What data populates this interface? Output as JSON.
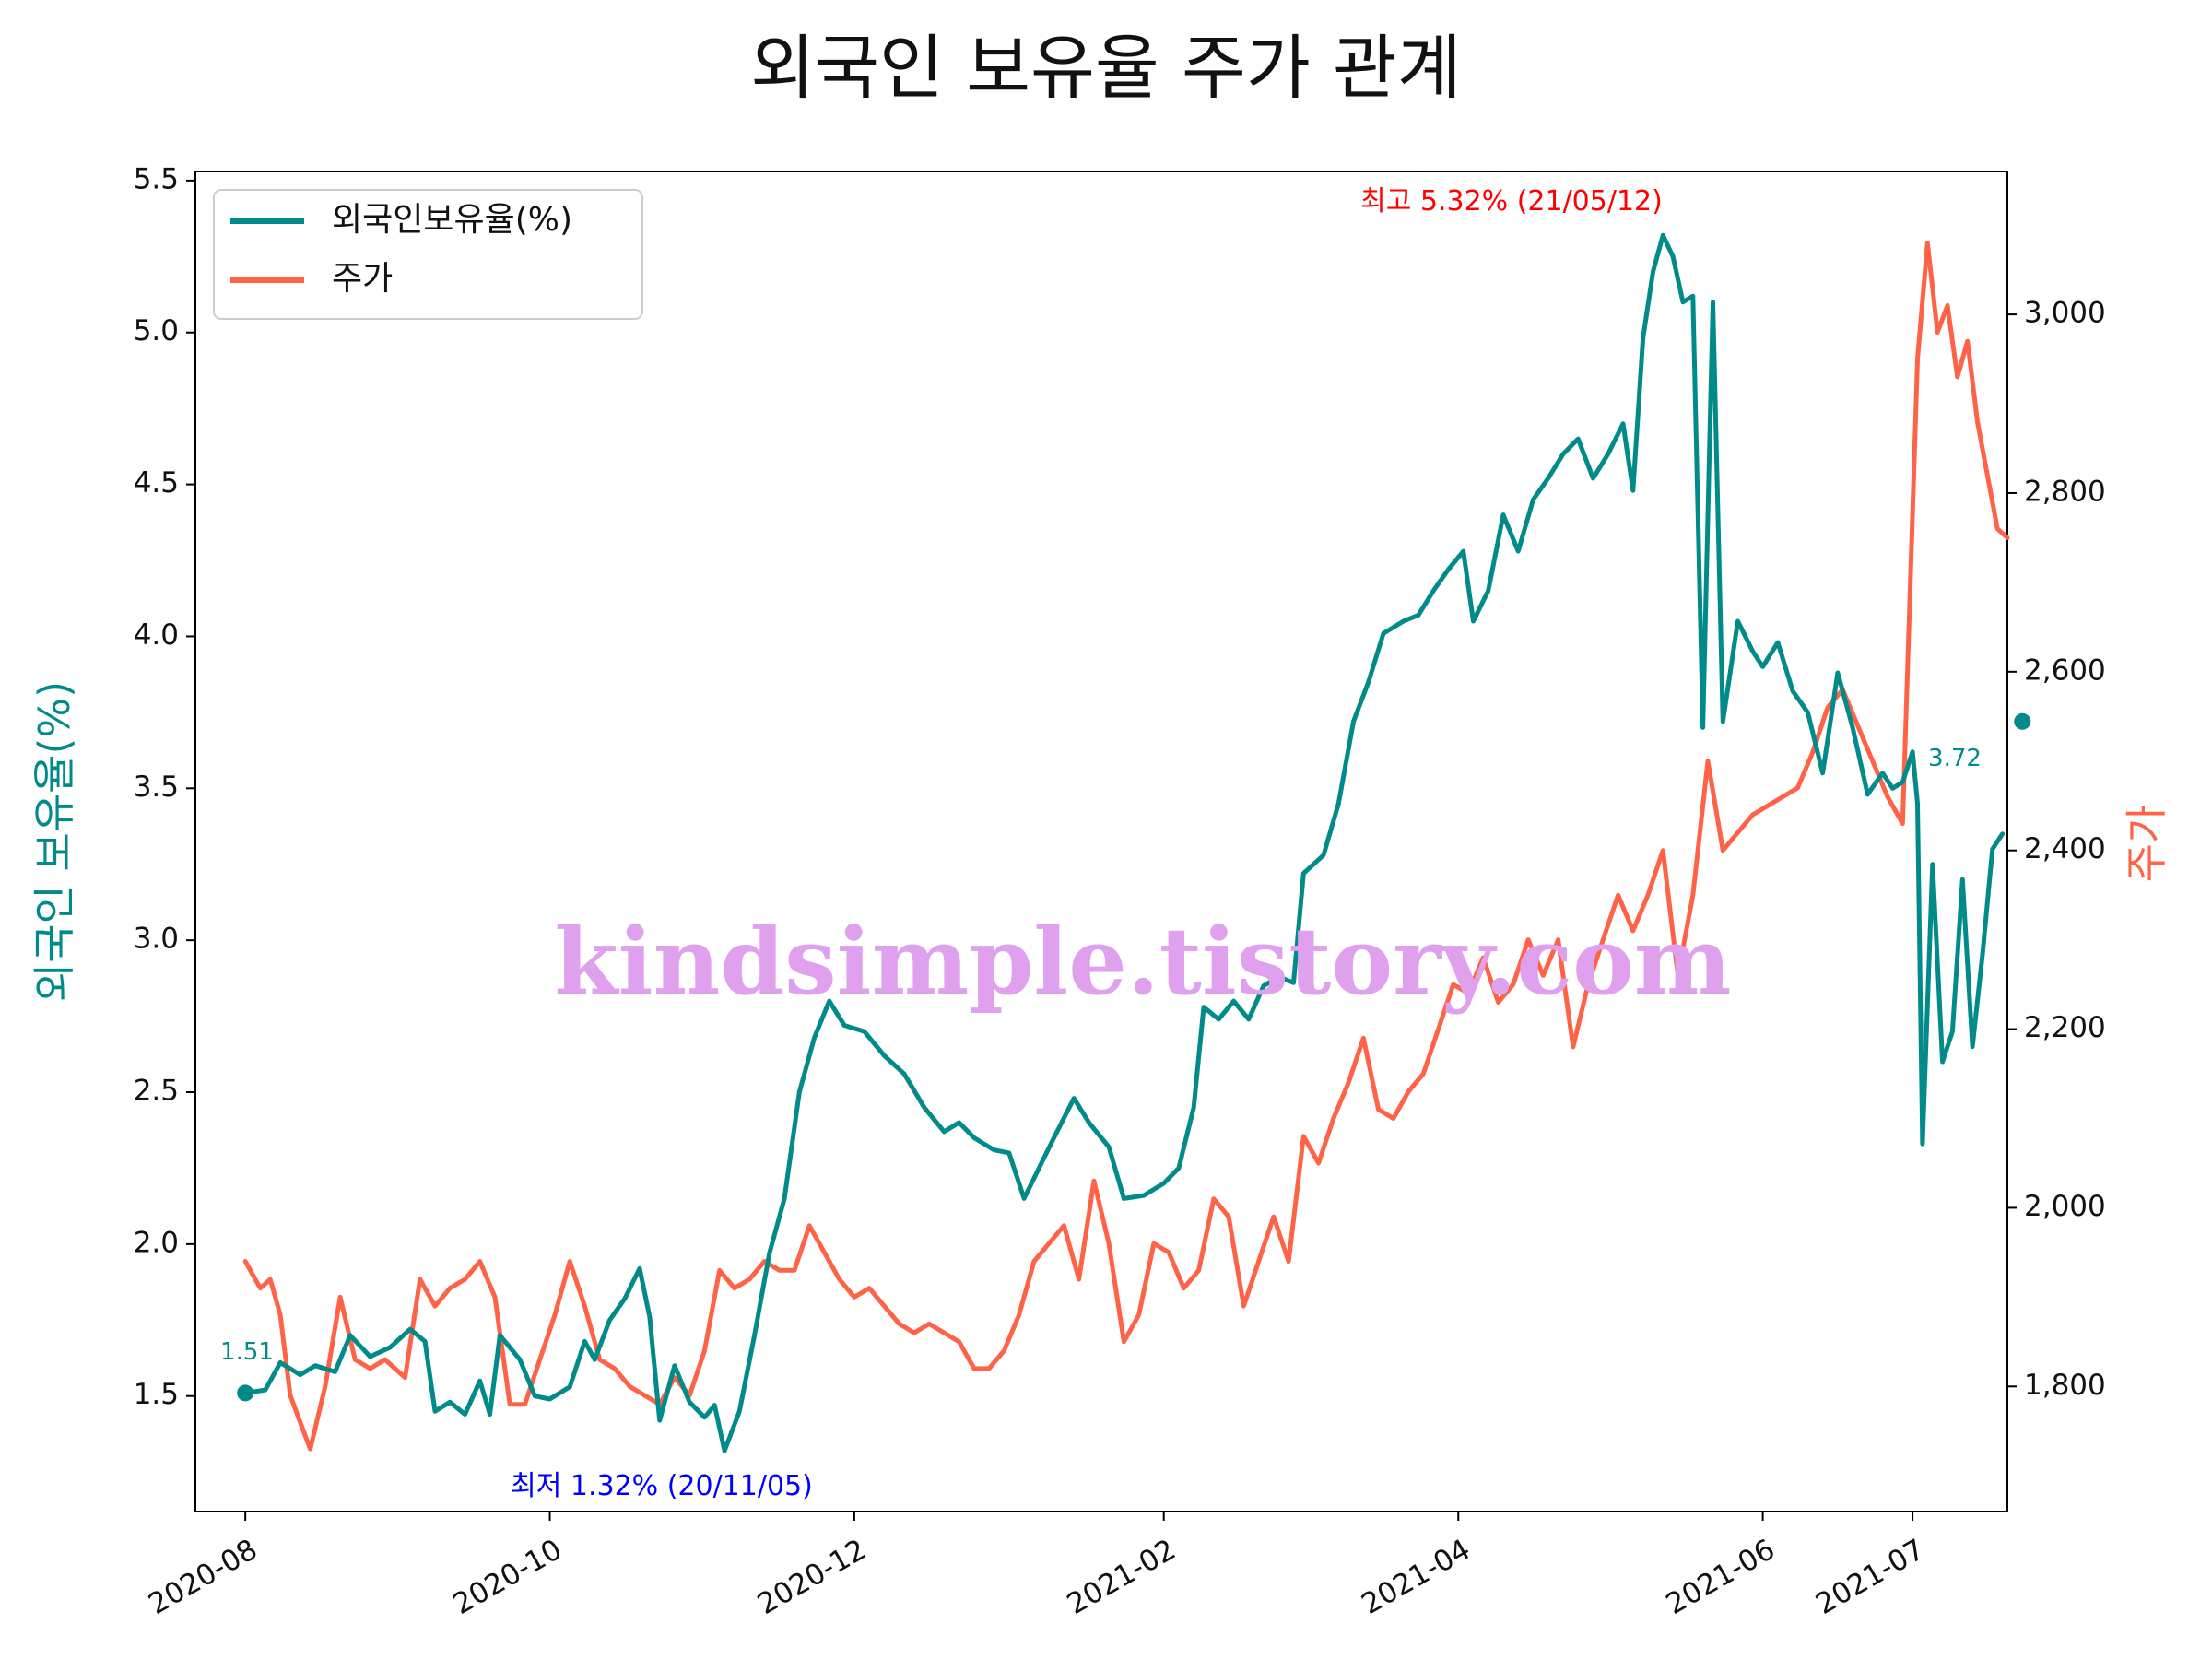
{
  "chart_data": {
    "type": "line",
    "title": "외국인 보유율 주가 관계",
    "ylabel_left": "외국인 보유율(%)",
    "ylabel_right": "주가",
    "xlim": [
      "2020-07-22",
      "2021-07-20"
    ],
    "ylim_left": [
      1.12,
      5.53
    ],
    "ylim_right": [
      1660,
      3160
    ],
    "x_ticks": [
      {
        "date": "2020-08-01",
        "label": "2020-08"
      },
      {
        "date": "2020-10-01",
        "label": "2020-10"
      },
      {
        "date": "2020-12-01",
        "label": "2020-12"
      },
      {
        "date": "2021-02-01",
        "label": "2021-02"
      },
      {
        "date": "2021-04-01",
        "label": "2021-04"
      },
      {
        "date": "2021-06-01",
        "label": "2021-06"
      },
      {
        "date": "2021-07-01",
        "label": "2021-07"
      }
    ],
    "y_ticks_left": [
      {
        "value": 1.5,
        "label": "1.5"
      },
      {
        "value": 2.0,
        "label": "2.0"
      },
      {
        "value": 2.5,
        "label": "2.5"
      },
      {
        "value": 3.0,
        "label": "3.0"
      },
      {
        "value": 3.5,
        "label": "3.5"
      },
      {
        "value": 4.0,
        "label": "4.0"
      },
      {
        "value": 4.5,
        "label": "4.5"
      },
      {
        "value": 5.0,
        "label": "5.0"
      },
      {
        "value": 5.5,
        "label": "5.5"
      }
    ],
    "y_ticks_right": [
      {
        "value": 1800,
        "label": "1,800"
      },
      {
        "value": 2000,
        "label": "2,000"
      },
      {
        "value": 2200,
        "label": "2,200"
      },
      {
        "value": 2400,
        "label": "2,400"
      },
      {
        "value": 2600,
        "label": "2,600"
      },
      {
        "value": 2800,
        "label": "2,800"
      },
      {
        "value": 3000,
        "label": "3,000"
      }
    ],
    "legend": {
      "position": "upper-left"
    },
    "grid": false,
    "series": [
      {
        "name": "외국인보유율(%)",
        "axis": "left",
        "color": "#008b8a",
        "points": [
          [
            "2020-08-01",
            1.51
          ],
          [
            "2020-08-05",
            1.52
          ],
          [
            "2020-08-08",
            1.61
          ],
          [
            "2020-08-12",
            1.57
          ],
          [
            "2020-08-15",
            1.6
          ],
          [
            "2020-08-19",
            1.58
          ],
          [
            "2020-08-22",
            1.7
          ],
          [
            "2020-08-26",
            1.63
          ],
          [
            "2020-08-30",
            1.66
          ],
          [
            "2020-09-03",
            1.72
          ],
          [
            "2020-09-06",
            1.68
          ],
          [
            "2020-09-08",
            1.45
          ],
          [
            "2020-09-11",
            1.48
          ],
          [
            "2020-09-14",
            1.44
          ],
          [
            "2020-09-17",
            1.55
          ],
          [
            "2020-09-19",
            1.44
          ],
          [
            "2020-09-21",
            1.7
          ],
          [
            "2020-09-25",
            1.62
          ],
          [
            "2020-09-28",
            1.5
          ],
          [
            "2020-10-01",
            1.49
          ],
          [
            "2020-10-05",
            1.53
          ],
          [
            "2020-10-08",
            1.68
          ],
          [
            "2020-10-10",
            1.62
          ],
          [
            "2020-10-13",
            1.75
          ],
          [
            "2020-10-16",
            1.82
          ],
          [
            "2020-10-19",
            1.92
          ],
          [
            "2020-10-21",
            1.76
          ],
          [
            "2020-10-23",
            1.42
          ],
          [
            "2020-10-26",
            1.6
          ],
          [
            "2020-10-29",
            1.48
          ],
          [
            "2020-11-01",
            1.43
          ],
          [
            "2020-11-03",
            1.47
          ],
          [
            "2020-11-05",
            1.32
          ],
          [
            "2020-11-08",
            1.45
          ],
          [
            "2020-11-11",
            1.7
          ],
          [
            "2020-11-14",
            1.97
          ],
          [
            "2020-11-17",
            2.15
          ],
          [
            "2020-11-20",
            2.5
          ],
          [
            "2020-11-23",
            2.68
          ],
          [
            "2020-11-26",
            2.8
          ],
          [
            "2020-11-29",
            2.72
          ],
          [
            "2020-12-03",
            2.7
          ],
          [
            "2020-12-07",
            2.62
          ],
          [
            "2020-12-11",
            2.56
          ],
          [
            "2020-12-15",
            2.45
          ],
          [
            "2020-12-19",
            2.37
          ],
          [
            "2020-12-22",
            2.4
          ],
          [
            "2020-12-25",
            2.35
          ],
          [
            "2020-12-29",
            2.31
          ],
          [
            "2021-01-01",
            2.3
          ],
          [
            "2021-01-04",
            2.15
          ],
          [
            "2021-01-07",
            2.25
          ],
          [
            "2021-01-10",
            2.35
          ],
          [
            "2021-01-14",
            2.48
          ],
          [
            "2021-01-17",
            2.4
          ],
          [
            "2021-01-21",
            2.32
          ],
          [
            "2021-01-24",
            2.15
          ],
          [
            "2021-01-28",
            2.16
          ],
          [
            "2021-02-01",
            2.2
          ],
          [
            "2021-02-04",
            2.25
          ],
          [
            "2021-02-07",
            2.45
          ],
          [
            "2021-02-09",
            2.78
          ],
          [
            "2021-02-12",
            2.74
          ],
          [
            "2021-02-15",
            2.8
          ],
          [
            "2021-02-18",
            2.74
          ],
          [
            "2021-02-21",
            2.85
          ],
          [
            "2021-02-24",
            2.88
          ],
          [
            "2021-02-27",
            2.86
          ],
          [
            "2021-03-01",
            3.22
          ],
          [
            "2021-03-05",
            3.28
          ],
          [
            "2021-03-08",
            3.45
          ],
          [
            "2021-03-11",
            3.72
          ],
          [
            "2021-03-14",
            3.85
          ],
          [
            "2021-03-17",
            4.01
          ],
          [
            "2021-03-21",
            4.05
          ],
          [
            "2021-03-24",
            4.07
          ],
          [
            "2021-03-27",
            4.15
          ],
          [
            "2021-03-30",
            4.22
          ],
          [
            "2021-04-02",
            4.28
          ],
          [
            "2021-04-04",
            4.05
          ],
          [
            "2021-04-07",
            4.15
          ],
          [
            "2021-04-10",
            4.4
          ],
          [
            "2021-04-13",
            4.28
          ],
          [
            "2021-04-16",
            4.45
          ],
          [
            "2021-04-19",
            4.52
          ],
          [
            "2021-04-22",
            4.6
          ],
          [
            "2021-04-25",
            4.65
          ],
          [
            "2021-04-28",
            4.52
          ],
          [
            "2021-05-01",
            4.6
          ],
          [
            "2021-05-04",
            4.7
          ],
          [
            "2021-05-06",
            4.48
          ],
          [
            "2021-05-08",
            4.98
          ],
          [
            "2021-05-10",
            5.2
          ],
          [
            "2021-05-12",
            5.32
          ],
          [
            "2021-05-14",
            5.25
          ],
          [
            "2021-05-16",
            5.1
          ],
          [
            "2021-05-18",
            5.12
          ],
          [
            "2021-05-20",
            3.7
          ],
          [
            "2021-05-22",
            5.1
          ],
          [
            "2021-05-24",
            3.72
          ],
          [
            "2021-05-27",
            4.05
          ],
          [
            "2021-05-30",
            3.95
          ],
          [
            "2021-06-01",
            3.9
          ],
          [
            "2021-06-04",
            3.98
          ],
          [
            "2021-06-07",
            3.82
          ],
          [
            "2021-06-10",
            3.75
          ],
          [
            "2021-06-13",
            3.55
          ],
          [
            "2021-06-16",
            3.88
          ],
          [
            "2021-06-19",
            3.7
          ],
          [
            "2021-06-22",
            3.48
          ],
          [
            "2021-06-25",
            3.55
          ],
          [
            "2021-06-27",
            3.5
          ],
          [
            "2021-06-29",
            3.52
          ],
          [
            "2021-07-01",
            3.62
          ],
          [
            "2021-07-02",
            3.45
          ],
          [
            "2021-07-03",
            2.33
          ],
          [
            "2021-07-05",
            3.25
          ],
          [
            "2021-07-07",
            2.6
          ],
          [
            "2021-07-09",
            2.7
          ],
          [
            "2021-07-11",
            3.2
          ],
          [
            "2021-07-13",
            2.65
          ],
          [
            "2021-07-15",
            2.95
          ],
          [
            "2021-07-17",
            3.3
          ],
          [
            "2021-07-19",
            3.35
          ]
        ]
      },
      {
        "name": "주가",
        "axis": "right",
        "color": "#ff6347",
        "points": [
          [
            "2020-08-01",
            1940
          ],
          [
            "2020-08-04",
            1910
          ],
          [
            "2020-08-06",
            1920
          ],
          [
            "2020-08-08",
            1880
          ],
          [
            "2020-08-10",
            1790
          ],
          [
            "2020-08-12",
            1760
          ],
          [
            "2020-08-14",
            1730
          ],
          [
            "2020-08-17",
            1800
          ],
          [
            "2020-08-20",
            1900
          ],
          [
            "2020-08-23",
            1830
          ],
          [
            "2020-08-26",
            1820
          ],
          [
            "2020-08-29",
            1830
          ],
          [
            "2020-09-02",
            1810
          ],
          [
            "2020-09-05",
            1920
          ],
          [
            "2020-09-08",
            1890
          ],
          [
            "2020-09-11",
            1910
          ],
          [
            "2020-09-14",
            1920
          ],
          [
            "2020-09-17",
            1940
          ],
          [
            "2020-09-20",
            1900
          ],
          [
            "2020-09-23",
            1780
          ],
          [
            "2020-09-26",
            1780
          ],
          [
            "2020-09-29",
            1830
          ],
          [
            "2020-10-02",
            1880
          ],
          [
            "2020-10-05",
            1940
          ],
          [
            "2020-10-08",
            1890
          ],
          [
            "2020-10-11",
            1830
          ],
          [
            "2020-10-14",
            1820
          ],
          [
            "2020-10-17",
            1800
          ],
          [
            "2020-10-20",
            1790
          ],
          [
            "2020-10-23",
            1780
          ],
          [
            "2020-10-26",
            1810
          ],
          [
            "2020-10-29",
            1790
          ],
          [
            "2020-11-01",
            1840
          ],
          [
            "2020-11-04",
            1930
          ],
          [
            "2020-11-07",
            1910
          ],
          [
            "2020-11-10",
            1920
          ],
          [
            "2020-11-13",
            1940
          ],
          [
            "2020-11-16",
            1930
          ],
          [
            "2020-11-19",
            1930
          ],
          [
            "2020-11-22",
            1980
          ],
          [
            "2020-11-25",
            1950
          ],
          [
            "2020-11-28",
            1920
          ],
          [
            "2020-12-01",
            1900
          ],
          [
            "2020-12-04",
            1910
          ],
          [
            "2020-12-07",
            1890
          ],
          [
            "2020-12-10",
            1870
          ],
          [
            "2020-12-13",
            1860
          ],
          [
            "2020-12-16",
            1870
          ],
          [
            "2020-12-19",
            1860
          ],
          [
            "2020-12-22",
            1850
          ],
          [
            "2020-12-25",
            1820
          ],
          [
            "2020-12-28",
            1820
          ],
          [
            "2020-12-31",
            1840
          ],
          [
            "2021-01-03",
            1880
          ],
          [
            "2021-01-06",
            1940
          ],
          [
            "2021-01-09",
            1960
          ],
          [
            "2021-01-12",
            1980
          ],
          [
            "2021-01-15",
            1920
          ],
          [
            "2021-01-18",
            2030
          ],
          [
            "2021-01-21",
            1960
          ],
          [
            "2021-01-24",
            1850
          ],
          [
            "2021-01-27",
            1880
          ],
          [
            "2021-01-30",
            1960
          ],
          [
            "2021-02-02",
            1950
          ],
          [
            "2021-02-05",
            1910
          ],
          [
            "2021-02-08",
            1930
          ],
          [
            "2021-02-11",
            2010
          ],
          [
            "2021-02-14",
            1990
          ],
          [
            "2021-02-17",
            1890
          ],
          [
            "2021-02-20",
            1940
          ],
          [
            "2021-02-23",
            1990
          ],
          [
            "2021-02-26",
            1940
          ],
          [
            "2021-03-01",
            2080
          ],
          [
            "2021-03-04",
            2050
          ],
          [
            "2021-03-07",
            2100
          ],
          [
            "2021-03-10",
            2140
          ],
          [
            "2021-03-13",
            2190
          ],
          [
            "2021-03-16",
            2110
          ],
          [
            "2021-03-19",
            2100
          ],
          [
            "2021-03-22",
            2130
          ],
          [
            "2021-03-25",
            2150
          ],
          [
            "2021-03-28",
            2200
          ],
          [
            "2021-03-31",
            2250
          ],
          [
            "2021-04-03",
            2240
          ],
          [
            "2021-04-06",
            2280
          ],
          [
            "2021-04-09",
            2230
          ],
          [
            "2021-04-12",
            2250
          ],
          [
            "2021-04-15",
            2300
          ],
          [
            "2021-04-18",
            2260
          ],
          [
            "2021-04-21",
            2300
          ],
          [
            "2021-04-24",
            2180
          ],
          [
            "2021-04-27",
            2250
          ],
          [
            "2021-04-30",
            2300
          ],
          [
            "2021-05-03",
            2350
          ],
          [
            "2021-05-06",
            2310
          ],
          [
            "2021-05-09",
            2350
          ],
          [
            "2021-05-12",
            2400
          ],
          [
            "2021-05-15",
            2260
          ],
          [
            "2021-05-18",
            2350
          ],
          [
            "2021-05-21",
            2500
          ],
          [
            "2021-05-24",
            2400
          ],
          [
            "2021-05-27",
            2420
          ],
          [
            "2021-05-30",
            2440
          ],
          [
            "2021-06-02",
            2450
          ],
          [
            "2021-06-05",
            2460
          ],
          [
            "2021-06-08",
            2470
          ],
          [
            "2021-06-11",
            2510
          ],
          [
            "2021-06-14",
            2560
          ],
          [
            "2021-06-17",
            2580
          ],
          [
            "2021-06-20",
            2540
          ],
          [
            "2021-06-23",
            2500
          ],
          [
            "2021-06-26",
            2460
          ],
          [
            "2021-06-29",
            2430
          ],
          [
            "2021-07-02",
            2950
          ],
          [
            "2021-07-04",
            3080
          ],
          [
            "2021-07-06",
            2980
          ],
          [
            "2021-07-08",
            3010
          ],
          [
            "2021-07-10",
            2930
          ],
          [
            "2021-07-12",
            2970
          ],
          [
            "2021-07-14",
            2880
          ],
          [
            "2021-07-16",
            2820
          ],
          [
            "2021-07-18",
            2760
          ],
          [
            "2021-07-20",
            2750
          ]
        ]
      }
    ],
    "annotations": [
      {
        "text": "최고 5.32% (21/05/12)",
        "color": "#ff0000"
      },
      {
        "text": "최저 1.32% (20/11/05)",
        "color": "#0000ff"
      },
      {
        "text": "1.51",
        "color": "#008b8a"
      },
      {
        "text": "3.72",
        "color": "#008b8a"
      }
    ],
    "watermark": "kindsimple.tistory.com"
  }
}
